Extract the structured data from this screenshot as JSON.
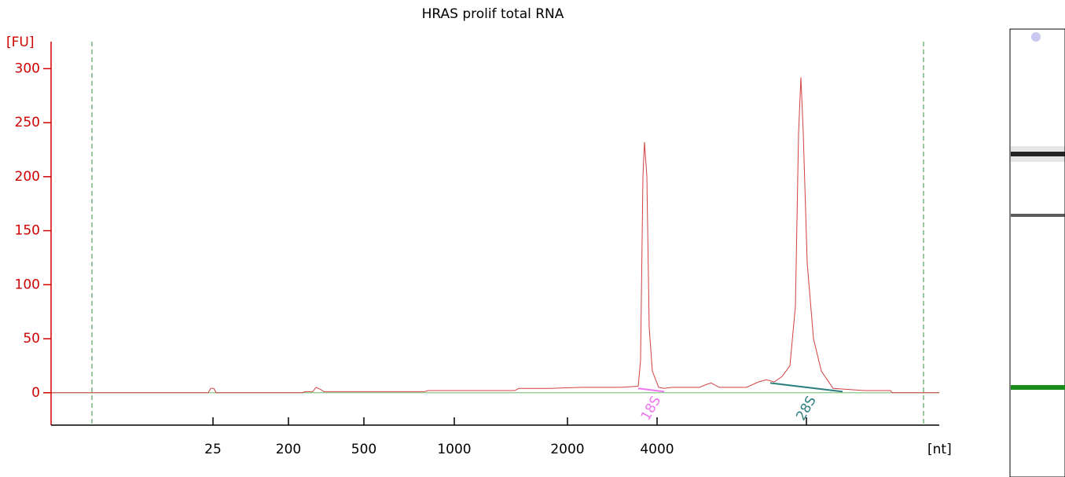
{
  "chart_data": {
    "type": "line",
    "title": "HRAS prolif total RNA",
    "y_label": "[FU]",
    "x_label": "[nt]",
    "xlim": [
      18,
      74.5
    ],
    "ylim": [
      -30,
      325
    ],
    "yticks": [
      0,
      50,
      100,
      150,
      200,
      250,
      300
    ],
    "xticks": [
      {
        "value": 28.3,
        "label": "25"
      },
      {
        "value": 33.1,
        "label": "200"
      },
      {
        "value": 37.9,
        "label": "500"
      },
      {
        "value": 43.65,
        "label": "1000"
      },
      {
        "value": 50.85,
        "label": "2000"
      },
      {
        "value": 56.55,
        "label": "4000"
      },
      {
        "value": 66.05,
        "label": null
      }
    ],
    "markers": [
      20.6,
      73.5
    ],
    "series": [
      {
        "color": "#d04040",
        "x": [
          18,
          28,
          28.15,
          28.35,
          28.5,
          34,
          34.15,
          34.65,
          34.85,
          35.15,
          35.35,
          35.75,
          36.25,
          39.25,
          39.75,
          40.35,
          41.75,
          42,
          44.75,
          47.5,
          47.75,
          49.75,
          51.75,
          52.75,
          54.25,
          55.35,
          55.5,
          55.65,
          55.75,
          55.9,
          56.05,
          56.25,
          56.65,
          57,
          57.5,
          59.25,
          59.75,
          60,
          60.5,
          62.25,
          63,
          63.5,
          64,
          64.5,
          65,
          65.35,
          65.55,
          65.7,
          65.85,
          66.1,
          66.5,
          67,
          67.75,
          68.75,
          69.75,
          71.4,
          71.5,
          74.5
        ],
        "values": [
          0,
          0,
          4,
          4,
          0,
          0,
          1,
          1,
          5,
          3,
          1,
          1,
          1,
          1,
          1,
          1,
          1,
          2,
          2,
          2,
          4,
          4,
          5,
          5,
          5,
          6,
          30,
          200,
          232,
          200,
          60,
          20,
          5,
          4,
          5,
          5,
          8,
          9,
          5,
          5,
          10,
          12,
          10,
          15,
          25,
          80,
          240,
          292,
          240,
          120,
          50,
          20,
          4,
          3,
          2,
          2,
          0,
          0
        ]
      }
    ],
    "annotations": [
      {
        "label": "18S",
        "color": "#ee77ee",
        "x": [
          55.35,
          57
        ],
        "y": [
          4,
          1
        ]
      },
      {
        "label": "28S",
        "color": "#2f7f7f",
        "x": [
          63.75,
          68.35
        ],
        "y": [
          9,
          1
        ]
      }
    ]
  }
}
